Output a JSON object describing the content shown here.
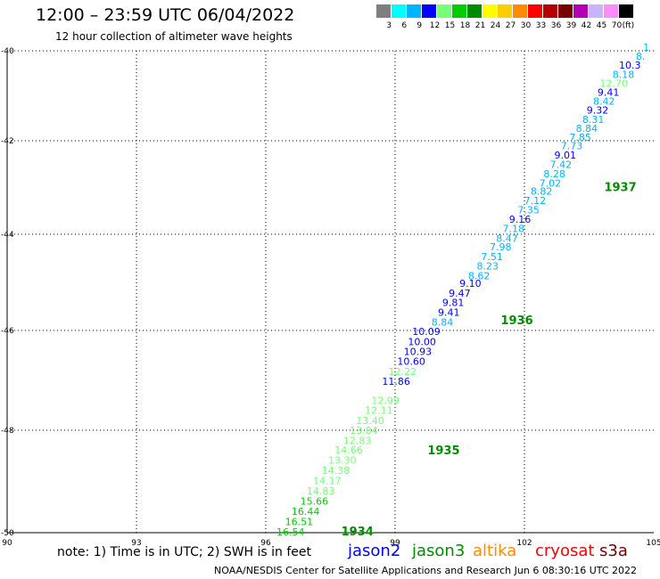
{
  "header": {
    "title": "12:00 – 23:59 UTC 06/04/2022",
    "subtitle": "12 hour collection of altimeter wave heights"
  },
  "colorbar": {
    "colors": [
      "#7f7f7f",
      "#00ffff",
      "#00b4ff",
      "#0000ff",
      "#78ff78",
      "#00cc00",
      "#008c00",
      "#ffff00",
      "#ffcc00",
      "#ff8c00",
      "#ff0000",
      "#b40000",
      "#780000",
      "#b400b4",
      "#c8b4ff",
      "#ff8cff",
      "#000000"
    ],
    "labels": [
      "3",
      "6",
      "9",
      "12",
      "15",
      "18",
      "21",
      "24",
      "27",
      "30",
      "33",
      "36",
      "39",
      "42",
      "45",
      "70",
      "(ft)"
    ]
  },
  "map": {
    "lon_ticks": [
      "90",
      "93",
      "96",
      "99",
      "102",
      "105"
    ],
    "lat_ticks": [
      "-40",
      "-42",
      "-44",
      "-46",
      "-48",
      "-50"
    ],
    "lon_range": [
      90,
      105
    ],
    "lat_range": [
      -40,
      -50
    ]
  },
  "passes": [
    {
      "label": "1934",
      "lon": 98.5,
      "lat": -49.98
    },
    {
      "label": "1935",
      "lon": 100.5,
      "lat": -48.4
    },
    {
      "label": "1936",
      "lon": 102.2,
      "lat": -45.8
    },
    {
      "label": "1937",
      "lon": 104.6,
      "lat": -43.0
    }
  ],
  "observations": [
    {
      "v": "16.54",
      "lon": 96.9,
      "lat": -49.98,
      "color": "#00cc00"
    },
    {
      "v": "16.51",
      "lon": 97.1,
      "lat": -49.78,
      "color": "#00cc00"
    },
    {
      "v": "16.44",
      "lon": 97.25,
      "lat": -49.58,
      "color": "#00cc00"
    },
    {
      "v": "15.66",
      "lon": 97.45,
      "lat": -49.38,
      "color": "#00cc00"
    },
    {
      "v": "14.83",
      "lon": 97.6,
      "lat": -49.18,
      "color": "#78ff78"
    },
    {
      "v": "14.17",
      "lon": 97.75,
      "lat": -48.98,
      "color": "#78ff78"
    },
    {
      "v": "14.38",
      "lon": 97.95,
      "lat": -48.78,
      "color": "#78ff78"
    },
    {
      "v": "13.30",
      "lon": 98.1,
      "lat": -48.58,
      "color": "#78ff78"
    },
    {
      "v": "14.66",
      "lon": 98.25,
      "lat": -48.38,
      "color": "#78ff78"
    },
    {
      "v": "12.83",
      "lon": 98.45,
      "lat": -48.2,
      "color": "#78ff78"
    },
    {
      "v": "13.84",
      "lon": 98.6,
      "lat": -48.0,
      "color": "#78ff78"
    },
    {
      "v": "13.40",
      "lon": 98.75,
      "lat": -47.8,
      "color": "#78ff78"
    },
    {
      "v": "12.11",
      "lon": 98.95,
      "lat": -47.6,
      "color": "#78ff78"
    },
    {
      "v": "12.99",
      "lon": 99.1,
      "lat": -47.4,
      "color": "#78ff78"
    },
    {
      "v": "11.86",
      "lon": 99.35,
      "lat": -47.02,
      "color": "#0000ff"
    },
    {
      "v": "12.22",
      "lon": 99.5,
      "lat": -46.82,
      "color": "#78ff78"
    },
    {
      "v": "10.60",
      "lon": 99.7,
      "lat": -46.62,
      "color": "#0000ff"
    },
    {
      "v": "10.93",
      "lon": 99.85,
      "lat": -46.42,
      "color": "#0000ff"
    },
    {
      "v": "10.00",
      "lon": 99.95,
      "lat": -46.22,
      "color": "#0000ff"
    },
    {
      "v": "10.09",
      "lon": 100.05,
      "lat": -46.02,
      "color": "#0000ff"
    },
    {
      "v": "8.84",
      "lon": 100.35,
      "lat": -45.82,
      "color": "#00b4ff"
    },
    {
      "v": "9.41",
      "lon": 100.5,
      "lat": -45.62,
      "color": "#0000ff"
    },
    {
      "v": "9.81",
      "lon": 100.6,
      "lat": -45.42,
      "color": "#0000ff"
    },
    {
      "v": "9.47",
      "lon": 100.75,
      "lat": -45.22,
      "color": "#0000ff"
    },
    {
      "v": "9.10",
      "lon": 101.0,
      "lat": -45.02,
      "color": "#0000ff"
    },
    {
      "v": "8.62",
      "lon": 101.2,
      "lat": -44.86,
      "color": "#00b4ff"
    },
    {
      "v": "8.23",
      "lon": 101.4,
      "lat": -44.66,
      "color": "#00b4ff"
    },
    {
      "v": "7.51",
      "lon": 101.5,
      "lat": -44.46,
      "color": "#00b4ff"
    },
    {
      "v": "7.98",
      "lon": 101.7,
      "lat": -44.26,
      "color": "#00b4ff"
    },
    {
      "v": "8.47",
      "lon": 101.85,
      "lat": -44.08,
      "color": "#00b4ff"
    },
    {
      "v": "7.18",
      "lon": 102.0,
      "lat": -43.88,
      "color": "#00b4ff"
    },
    {
      "v": "9.16",
      "lon": 102.15,
      "lat": -43.68,
      "color": "#0000ff"
    },
    {
      "v": "7.35",
      "lon": 102.35,
      "lat": -43.48,
      "color": "#00b4ff"
    },
    {
      "v": "7.12",
      "lon": 102.5,
      "lat": -43.28,
      "color": "#00b4ff"
    },
    {
      "v": "8.82",
      "lon": 102.65,
      "lat": -43.08,
      "color": "#00b4ff"
    },
    {
      "v": "7.02",
      "lon": 102.85,
      "lat": -42.9,
      "color": "#00b4ff"
    },
    {
      "v": "8.28",
      "lon": 102.95,
      "lat": -42.7,
      "color": "#00b4ff"
    },
    {
      "v": "7.42",
      "lon": 103.1,
      "lat": -42.5,
      "color": "#00b4ff"
    },
    {
      "v": "9.01",
      "lon": 103.2,
      "lat": -42.3,
      "color": "#0000ff"
    },
    {
      "v": "7.73",
      "lon": 103.35,
      "lat": -42.1,
      "color": "#00b4ff"
    },
    {
      "v": "7.85",
      "lon": 103.55,
      "lat": -41.92,
      "color": "#00b4ff"
    },
    {
      "v": "8.84",
      "lon": 103.7,
      "lat": -41.72,
      "color": "#00b4ff"
    },
    {
      "v": "8.31",
      "lon": 103.85,
      "lat": -41.52,
      "color": "#00b4ff"
    },
    {
      "v": "9.32",
      "lon": 103.95,
      "lat": -41.32,
      "color": "#0000ff"
    },
    {
      "v": "8.42",
      "lon": 104.1,
      "lat": -41.12,
      "color": "#00b4ff"
    },
    {
      "v": "9.41",
      "lon": 104.2,
      "lat": -40.92,
      "color": "#0000ff"
    },
    {
      "v": "12.70",
      "lon": 104.4,
      "lat": -40.72,
      "color": "#78ff78"
    },
    {
      "v": "8.18",
      "lon": 104.55,
      "lat": -40.52,
      "color": "#00b4ff"
    },
    {
      "v": "10.3",
      "lon": 104.7,
      "lat": -40.32,
      "color": "#0000ff"
    },
    {
      "v": "8.",
      "lon": 104.8,
      "lat": -40.12,
      "color": "#00b4ff"
    },
    {
      "v": "1",
      "lon": 104.9,
      "lat": -39.92,
      "color": "#00b4ff"
    }
  ],
  "footer": {
    "note": "note:  1) Time is in UTC;  2) SWH is in feet",
    "credit": "NOAA/NESDIS Center for Satellite Applications and Research    Jun  6 08:30:16 UTC 2022"
  },
  "legend": [
    {
      "label": "jason2",
      "color": "#0000ff"
    },
    {
      "label": "jason3",
      "color": "#008c00"
    },
    {
      "label": "altika",
      "color": "#ff8c00"
    },
    {
      "label": "cryosat",
      "color": "#ff0000"
    },
    {
      "label": "s3a",
      "color": "#780000"
    }
  ]
}
